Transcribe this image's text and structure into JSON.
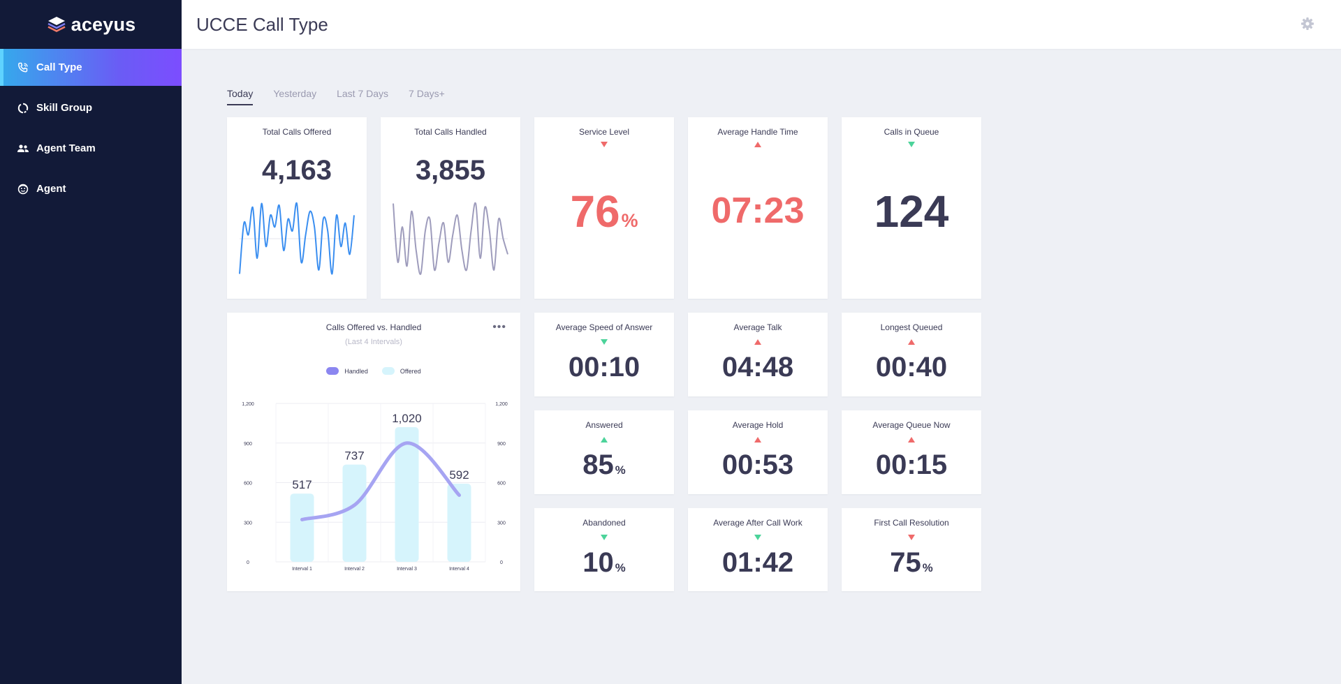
{
  "app": {
    "logo_text": "aceyus"
  },
  "sidebar": {
    "items": [
      {
        "label": "Call Type",
        "icon": "phone-icon",
        "active": true
      },
      {
        "label": "Skill Group",
        "icon": "refresh-circle-icon",
        "active": false
      },
      {
        "label": "Agent Team",
        "icon": "users-icon",
        "active": false
      },
      {
        "label": "Agent",
        "icon": "smiley-icon",
        "active": false
      }
    ]
  },
  "header": {
    "title": "UCCE Call Type",
    "settings_icon": "gear-icon"
  },
  "tabs": [
    {
      "label": "Today",
      "active": true
    },
    {
      "label": "Yesterday",
      "active": false
    },
    {
      "label": "Last 7 Days",
      "active": false
    },
    {
      "label": "7 Days+",
      "active": false
    }
  ],
  "colors": {
    "accent_red": "#ef6a6a",
    "accent_green": "#4cd39a",
    "sidebar_bg": "#121a38",
    "handled_line": "#a6a4f2",
    "offered_bar": "#d6f4fc",
    "spark_blue": "#3a8ef0",
    "spark_purple": "#9e9cbc"
  },
  "metrics": {
    "total_offered": {
      "title": "Total Calls Offered",
      "value": "4,163"
    },
    "total_handled": {
      "title": "Total Calls Handled",
      "value": "3,855"
    },
    "service_level": {
      "title": "Service Level",
      "value": "76",
      "unit": "%",
      "trend": "down"
    },
    "avg_handle_time": {
      "title": "Average Handle Time",
      "value": "07:23",
      "trend": "up"
    },
    "calls_in_queue": {
      "title": "Calls in Queue",
      "value": "124",
      "trend": "down"
    },
    "avg_speed_answer": {
      "title": "Average Speed of Answer",
      "value": "00:10",
      "trend": "down"
    },
    "avg_talk": {
      "title": "Average Talk",
      "value": "04:48",
      "trend": "up"
    },
    "longest_queued": {
      "title": "Longest Queued",
      "value": "00:40",
      "trend": "up"
    },
    "answered": {
      "title": "Answered",
      "value": "85",
      "unit": "%",
      "trend": "up"
    },
    "avg_hold": {
      "title": "Average Hold",
      "value": "00:53",
      "trend": "up"
    },
    "avg_queue_now": {
      "title": "Average Queue Now",
      "value": "00:15",
      "trend": "up"
    },
    "abandoned": {
      "title": "Abandoned",
      "value": "10",
      "unit": "%",
      "trend": "down"
    },
    "avg_after_call": {
      "title": "Average After Call Work",
      "value": "01:42",
      "trend": "down"
    },
    "first_call_res": {
      "title": "First Call Resolution",
      "value": "75",
      "unit": "%",
      "trend": "down"
    }
  },
  "chart_card": {
    "title": "Calls Offered vs. Handled",
    "subtitle": "(Last 4 Intervals)",
    "more_icon": "more-horizontal-icon"
  },
  "chart_data": {
    "type": "bar",
    "categories": [
      "Interval 1",
      "Interval 2",
      "Interval 3",
      "Interval 4"
    ],
    "series": [
      {
        "name": "Offered",
        "type": "bar",
        "values": [
          517,
          737,
          1020,
          592
        ]
      },
      {
        "name": "Handled",
        "type": "line",
        "values": [
          320,
          430,
          900,
          505
        ]
      }
    ],
    "ylim": [
      0,
      1200
    ],
    "y_ticks": [
      "0",
      "300",
      "600",
      "900",
      "1,200"
    ],
    "data_labels": [
      "517",
      "737",
      "1,020",
      "592"
    ],
    "legend": {
      "placement": "top-center",
      "entries": [
        "Handled",
        "Offered"
      ]
    },
    "grid": true
  },
  "sparklines": {
    "offered": [
      -0.9,
      0.4,
      0.1,
      0.8,
      -0.5,
      0.9,
      -0.2,
      0.6,
      0.3,
      0.85,
      -0.3,
      0.5,
      0.2,
      0.9,
      -0.6,
      0.1,
      0.7,
      0.3,
      -0.8,
      0.5,
      0.2,
      -0.9,
      0.6,
      -0.2,
      0.4,
      -0.4,
      0.6
    ],
    "handled": [
      0.9,
      -0.6,
      0.3,
      -0.7,
      0.7,
      -0.3,
      -0.9,
      0.2,
      0.5,
      -0.8,
      -0.1,
      0.4,
      -0.6,
      0.1,
      0.6,
      -0.3,
      -0.8,
      0.2,
      0.9,
      -0.5,
      0.8,
      0.2,
      -0.8,
      0.5,
      0.0,
      -0.4
    ]
  }
}
